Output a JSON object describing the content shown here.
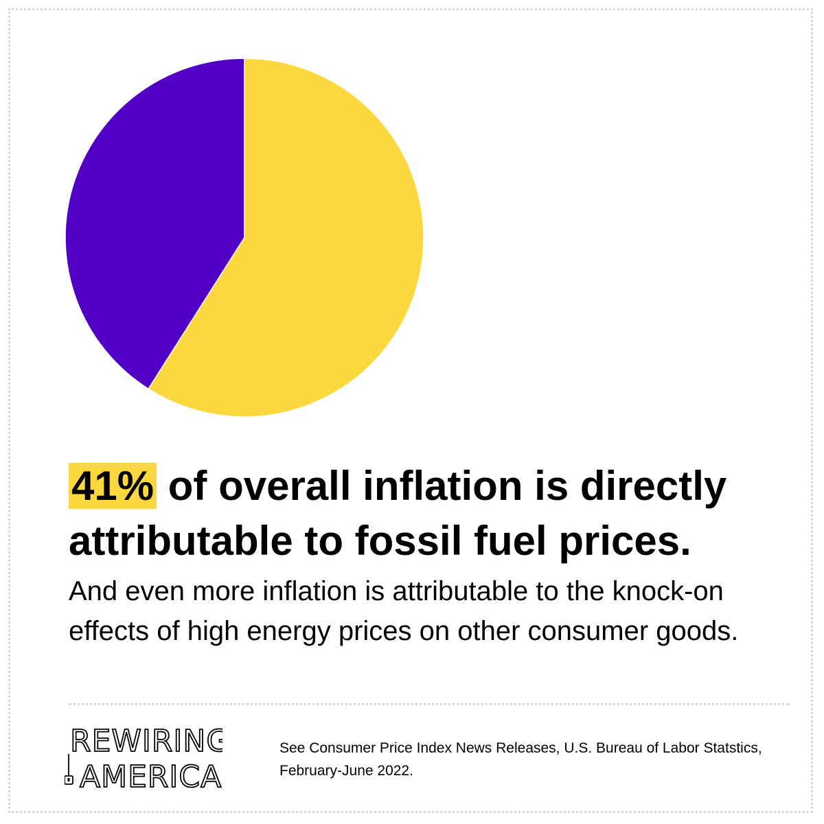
{
  "chart_data": {
    "type": "pie",
    "slices": [
      {
        "label": "",
        "value": 41,
        "color": "#5200c6"
      },
      {
        "label": "",
        "value": 59,
        "color": "#fdd73e"
      }
    ],
    "start": "12 o'clock",
    "direction": "counter-clockwise for the 41% slice"
  },
  "headline": {
    "highlight": "41%",
    "text": " of overall inflation is directly attributable to fossil fuel prices."
  },
  "subtext": "And even more inflation is attributable to the knock-on effects of high energy prices on other consumer goods.",
  "logo": {
    "line1": "REWIRING",
    "line2": "AMERICA"
  },
  "source": "See Consumer Price Index News Releases, U.S. Bureau of Labor Statstics, February-June 2022.",
  "colors": {
    "accent_yellow": "#fdd73e",
    "accent_purple": "#5200c6",
    "frame_dots": "#d6d6d6"
  }
}
